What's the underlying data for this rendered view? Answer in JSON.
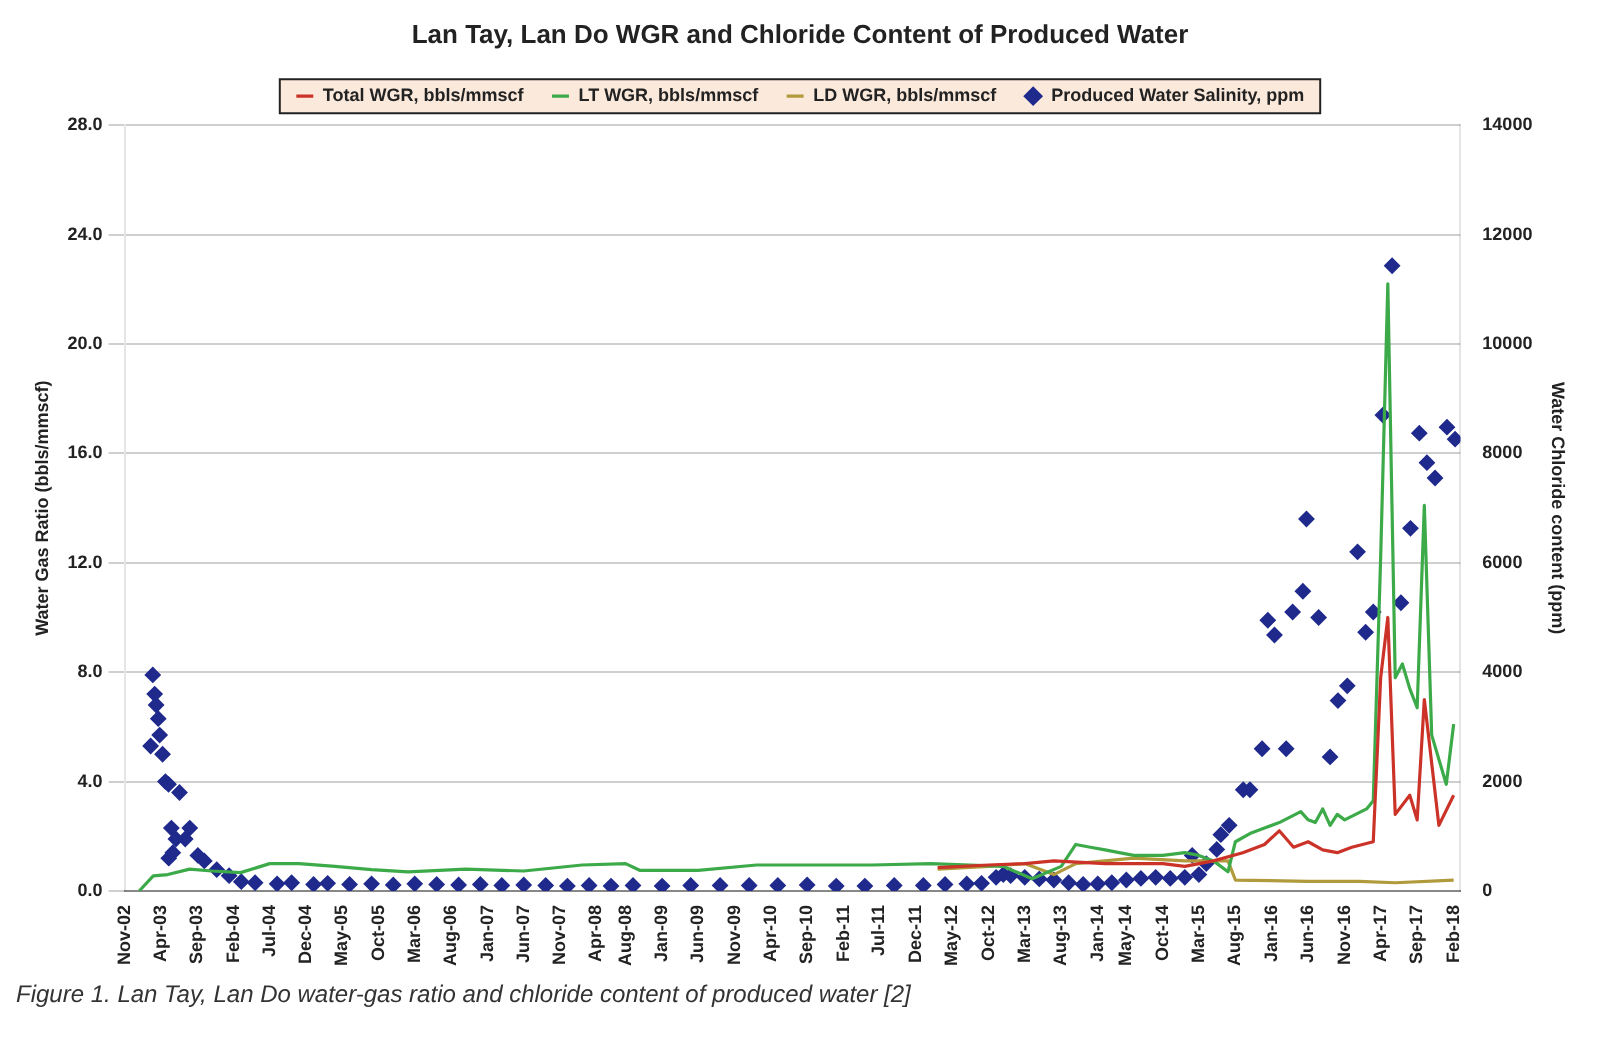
{
  "chart_data": {
    "type": "line",
    "title": "Lan Tay, Lan Do WGR and Chloride Content of Produced Water",
    "ylabel": "Water Gas Ratio (bbls/mmscf)",
    "y2label": "Water Chloride content (ppm)",
    "annotations": [
      "Figure 1. Lan Tay, Lan Do water-gas ratio and chloride content of produced water [2]"
    ],
    "xlim": [
      "2002-11-01",
      "2018-03-01"
    ],
    "xticks": [
      {
        "value": "2002-11-01",
        "label": "Nov-02"
      },
      {
        "value": "2003-04-01",
        "label": "Apr-03"
      },
      {
        "value": "2003-09-01",
        "label": "Sep-03"
      },
      {
        "value": "2004-02-01",
        "label": "Feb-04"
      },
      {
        "value": "2004-07-01",
        "label": "Jul-04"
      },
      {
        "value": "2004-12-01",
        "label": "Dec-04"
      },
      {
        "value": "2005-05-01",
        "label": "May-05"
      },
      {
        "value": "2005-10-01",
        "label": "Oct-05"
      },
      {
        "value": "2006-03-01",
        "label": "Mar-06"
      },
      {
        "value": "2006-08-01",
        "label": "Aug-06"
      },
      {
        "value": "2007-01-01",
        "label": "Jan-07"
      },
      {
        "value": "2007-06-01",
        "label": "Jun-07"
      },
      {
        "value": "2007-11-01",
        "label": "Nov-07"
      },
      {
        "value": "2008-04-01",
        "label": "Apr-08"
      },
      {
        "value": "2008-08-01",
        "label": "Aug-08"
      },
      {
        "value": "2009-01-01",
        "label": "Jan-09"
      },
      {
        "value": "2009-06-01",
        "label": "Jun-09"
      },
      {
        "value": "2009-11-01",
        "label": "Nov-09"
      },
      {
        "value": "2010-04-01",
        "label": "Apr-10"
      },
      {
        "value": "2010-09-01",
        "label": "Sep-10"
      },
      {
        "value": "2011-02-01",
        "label": "Feb-11"
      },
      {
        "value": "2011-07-01",
        "label": "Jul-11"
      },
      {
        "value": "2011-12-01",
        "label": "Dec-11"
      },
      {
        "value": "2012-05-01",
        "label": "May-12"
      },
      {
        "value": "2012-10-01",
        "label": "Oct-12"
      },
      {
        "value": "2013-03-01",
        "label": "Mar-13"
      },
      {
        "value": "2013-08-01",
        "label": "Aug-13"
      },
      {
        "value": "2014-01-01",
        "label": "Jan-14"
      },
      {
        "value": "2014-05-01",
        "label": "May-14"
      },
      {
        "value": "2014-10-01",
        "label": "Oct-14"
      },
      {
        "value": "2015-03-01",
        "label": "Mar-15"
      },
      {
        "value": "2015-08-01",
        "label": "Aug-15"
      },
      {
        "value": "2016-01-01",
        "label": "Jan-16"
      },
      {
        "value": "2016-06-01",
        "label": "Jun-16"
      },
      {
        "value": "2016-11-01",
        "label": "Nov-16"
      },
      {
        "value": "2017-04-01",
        "label": "Apr-17"
      },
      {
        "value": "2017-09-01",
        "label": "Sep-17"
      },
      {
        "value": "2018-02-01",
        "label": "Feb-18"
      }
    ],
    "ylim": [
      0,
      28
    ],
    "yticks": [
      {
        "value": 0,
        "label": "0.0"
      },
      {
        "value": 4,
        "label": "4.0"
      },
      {
        "value": 8,
        "label": "8.0"
      },
      {
        "value": 12,
        "label": "12.0"
      },
      {
        "value": 16,
        "label": "16.0"
      },
      {
        "value": 20,
        "label": "20.0"
      },
      {
        "value": 24,
        "label": "24.0"
      },
      {
        "value": 28,
        "label": "28.0"
      }
    ],
    "y2lim": [
      0,
      14000
    ],
    "y2ticks": [
      0,
      2000,
      4000,
      6000,
      8000,
      10000,
      12000,
      14000
    ],
    "grid": "y",
    "legend": "top",
    "series": [
      {
        "name": "Total WGR, bbls/mmscf",
        "color": "#cc3328",
        "marker": "none",
        "x": [
          "2012-03",
          "2012-10",
          "2013-03",
          "2013-07",
          "2014-02",
          "2014-10",
          "2015-01",
          "2015-05",
          "2015-09",
          "2015-12",
          "2016-02",
          "2016-04",
          "2016-06",
          "2016-08",
          "2016-10",
          "2016-12",
          "2017-03",
          "2017-04",
          "2017-05",
          "2017-06",
          "2017-08",
          "2017-09",
          "2017-10",
          "2017-12",
          "2018-02"
        ],
        "values": [
          0.85,
          0.95,
          1.0,
          1.1,
          1.0,
          1.0,
          0.9,
          1.1,
          1.4,
          1.7,
          2.2,
          1.6,
          1.8,
          1.5,
          1.4,
          1.6,
          1.8,
          7.8,
          10.0,
          2.8,
          3.5,
          2.6,
          7.0,
          2.4,
          3.5
        ]
      },
      {
        "name": "LT WGR, bbls/mmscf",
        "color": "#3daa4a",
        "marker": "none",
        "x": [
          "2003-01",
          "2003-03",
          "2003-05",
          "2003-08",
          "2003-11",
          "2004-03",
          "2004-07",
          "2004-11",
          "2005-04",
          "2005-09",
          "2006-02",
          "2006-10",
          "2007-06",
          "2008-02",
          "2008-08",
          "2008-10",
          "2009-06",
          "2010-02",
          "2011-06",
          "2012-02",
          "2012-12",
          "2013-04",
          "2013-08",
          "2013-10",
          "2013-12",
          "2014-02",
          "2014-04",
          "2014-06",
          "2014-10",
          "2015-01",
          "2015-03",
          "2015-05",
          "2015-07",
          "2015-08",
          "2015-10",
          "2015-12",
          "2016-02",
          "2016-05",
          "2016-06",
          "2016-07",
          "2016-08",
          "2016-09",
          "2016-10",
          "2016-11",
          "2017-02",
          "2017-03",
          "2017-04",
          "2017-05",
          "2017-06",
          "2017-07",
          "2017-08",
          "2017-09",
          "2017-10",
          "2017-11",
          "2018-01",
          "2018-02"
        ],
        "values": [
          0,
          0.55,
          0.6,
          0.8,
          0.73,
          0.67,
          1.0,
          1.0,
          0.9,
          0.78,
          0.7,
          0.8,
          0.73,
          0.95,
          1.0,
          0.75,
          0.75,
          0.95,
          0.95,
          1.0,
          0.9,
          0.45,
          0.9,
          1.7,
          1.6,
          1.5,
          1.4,
          1.3,
          1.3,
          1.4,
          1.3,
          1.1,
          0.7,
          1.8,
          2.1,
          2.3,
          2.5,
          2.9,
          2.6,
          2.5,
          3.0,
          2.4,
          2.8,
          2.6,
          3.0,
          3.3,
          12.2,
          22.2,
          7.8,
          8.3,
          7.4,
          6.7,
          14.1,
          5.7,
          3.9,
          6.1
        ]
      },
      {
        "name": "LD WGR, bbls/mmscf",
        "color": "#b09a3c",
        "marker": "none",
        "x": [
          "2012-03",
          "2012-10",
          "2013-03",
          "2013-07",
          "2013-10",
          "2014-06",
          "2015-01",
          "2015-07",
          "2015-08",
          "2016-06",
          "2017-01",
          "2017-06",
          "2018-02"
        ],
        "values": [
          0.8,
          0.9,
          1.0,
          0.6,
          1.0,
          1.2,
          1.1,
          1.1,
          0.4,
          0.35,
          0.35,
          0.3,
          0.4
        ]
      },
      {
        "name": "Produced Water Salinity, ppm",
        "type": "scatter",
        "axis": "y2",
        "color": "#1f2a8c",
        "marker": "diamond",
        "x": [
          "2003-02-18",
          "2003-02-27",
          "2003-03-07",
          "2003-03-13",
          "2003-03-22",
          "2003-03-28",
          "2003-04-09",
          "2003-04-21",
          "2003-05-04",
          "2003-05-05",
          "2003-05-16",
          "2003-05-22",
          "2003-06-04",
          "2003-06-19",
          "2003-07-13",
          "2003-08-01",
          "2003-09-04",
          "2003-10-01",
          "2003-11-22",
          "2004-01-13",
          "2004-03-04",
          "2004-05",
          "2004-08",
          "2004-10",
          "2005-01",
          "2005-03",
          "2005-06",
          "2005-09",
          "2005-12",
          "2006-03",
          "2006-06",
          "2006-09",
          "2006-12",
          "2007-03",
          "2007-06",
          "2007-09",
          "2007-12",
          "2008-03",
          "2008-06",
          "2008-09",
          "2009-01",
          "2009-05",
          "2009-09",
          "2010-01",
          "2010-05",
          "2010-09",
          "2011-01",
          "2011-05",
          "2011-09",
          "2012-01",
          "2012-04",
          "2012-07",
          "2012-09",
          "2012-11",
          "2012-12",
          "2013-01",
          "2013-03",
          "2013-05",
          "2013-07",
          "2013-09",
          "2013-11",
          "2014-01",
          "2014-03",
          "2014-05",
          "2014-07",
          "2014-09",
          "2014-11",
          "2015-01",
          "2015-02",
          "2015-03",
          "2015-04",
          "2015-05-15",
          "2015-06-01",
          "2015-07-06",
          "2015-09-03",
          "2015-10-01",
          "2015-11-21",
          "2015-12-15",
          "2016-01-12",
          "2016-03-01",
          "2016-03-28",
          "2016-05-10",
          "2016-05-25",
          "2016-07-15",
          "2016-09-01",
          "2016-10-04",
          "2016-11-12",
          "2016-12-25",
          "2017-01-28",
          "2017-03-01",
          "2017-04-10",
          "2017-05-19",
          "2017-06-25",
          "2017-08-04",
          "2017-09-10",
          "2017-10-12",
          "2017-11-15",
          "2018-01-04",
          "2018-02-07"
        ],
        "values": [
          2650,
          3950,
          3600,
          3400,
          3150,
          2850,
          2500,
          2000,
          1950,
          600,
          1150,
          700,
          950,
          1800,
          950,
          1150,
          650,
          550,
          390,
          280,
          170,
          150,
          130,
          150,
          120,
          140,
          120,
          130,
          110,
          130,
          120,
          110,
          120,
          100,
          110,
          100,
          90,
          100,
          90,
          100,
          90,
          100,
          100,
          100,
          100,
          110,
          90,
          90,
          100,
          100,
          120,
          130,
          140,
          250,
          300,
          280,
          250,
          220,
          200,
          150,
          120,
          130,
          150,
          200,
          230,
          250,
          230,
          250,
          650,
          300,
          500,
          760,
          1030,
          1200,
          1850,
          1850,
          2600,
          4950,
          4680,
          2600,
          5100,
          5480,
          6800,
          5000,
          2450,
          3480,
          3750,
          6200,
          4730,
          5100,
          8700,
          11430,
          5270,
          6630,
          8370,
          7830,
          7550,
          8480,
          8260
        ]
      }
    ]
  }
}
